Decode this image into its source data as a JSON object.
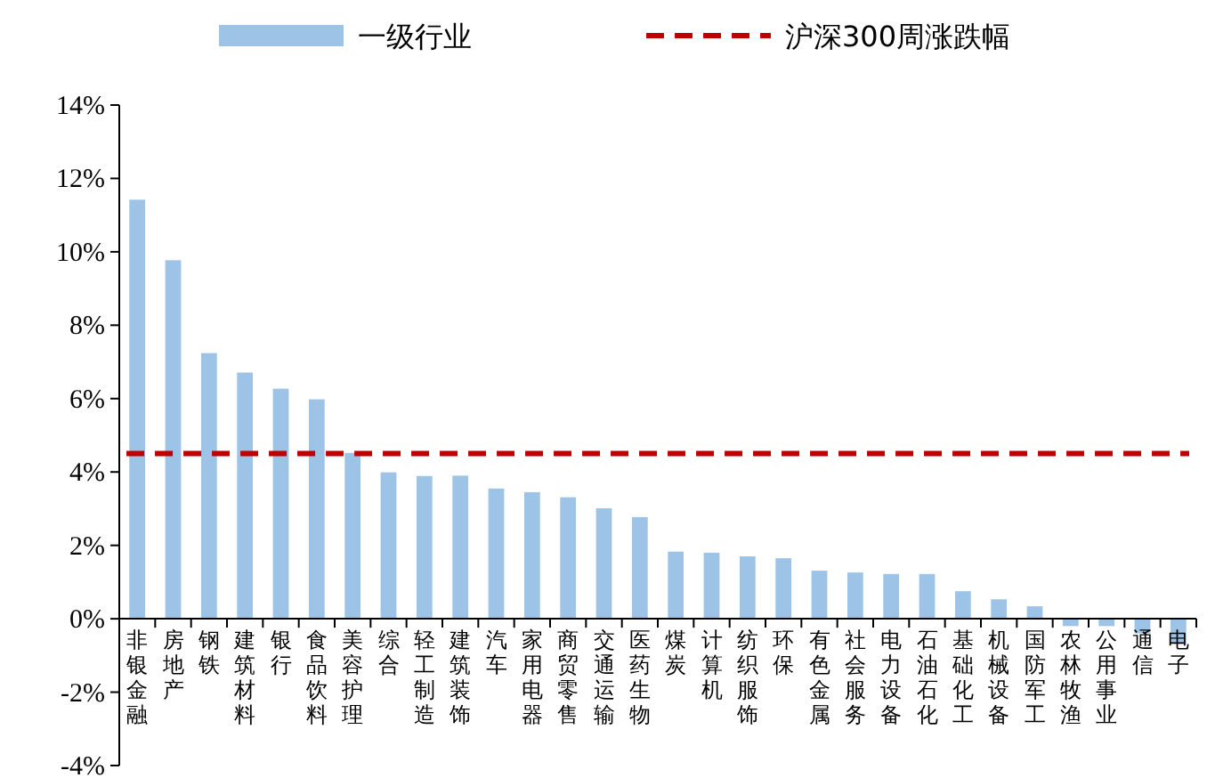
{
  "chart_data": {
    "type": "bar",
    "categories": [
      "非银金融",
      "房地产",
      "钢铁",
      "建筑材料",
      "银行",
      "食品饮料",
      "美容护理",
      "综合",
      "轻工制造",
      "建筑装饰",
      "汽车",
      "家用电器",
      "商贸零售",
      "交通运输",
      "医药生物",
      "煤炭",
      "计算机",
      "纺织服饰",
      "环保",
      "有色金属",
      "社会服务",
      "电力设备",
      "石油石化",
      "基础化工",
      "机械设备",
      "国防军工",
      "农林牧渔",
      "公用事业",
      "通信",
      "电子"
    ],
    "series": [
      {
        "name": "一级行业",
        "color": "#9dc3e6",
        "values": [
          11.42,
          9.77,
          7.24,
          6.71,
          6.27,
          5.98,
          4.52,
          3.99,
          3.89,
          3.9,
          3.55,
          3.45,
          3.31,
          3.01,
          2.77,
          1.83,
          1.8,
          1.7,
          1.65,
          1.31,
          1.26,
          1.22,
          1.22,
          0.75,
          0.53,
          0.34,
          -0.2,
          -0.2,
          -0.4,
          -0.7
        ]
      }
    ],
    "ref_lines": [
      {
        "axis": "y",
        "value": 4.5,
        "label": "沪深300周涨跌幅",
        "color": "#c00000",
        "line_style": "dashed"
      }
    ],
    "ylim": [
      -4,
      14
    ],
    "yticks": [
      {
        "value": -4,
        "label": "-4%"
      },
      {
        "value": -2,
        "label": "-2%"
      },
      {
        "value": 0,
        "label": "0%"
      },
      {
        "value": 2,
        "label": "2%"
      },
      {
        "value": 4,
        "label": "4%"
      },
      {
        "value": 6,
        "label": "6%"
      },
      {
        "value": 8,
        "label": "8%"
      },
      {
        "value": 10,
        "label": "10%"
      },
      {
        "value": 12,
        "label": "12%"
      },
      {
        "value": 14,
        "label": "14%"
      }
    ],
    "grid": false,
    "legend": "top"
  }
}
